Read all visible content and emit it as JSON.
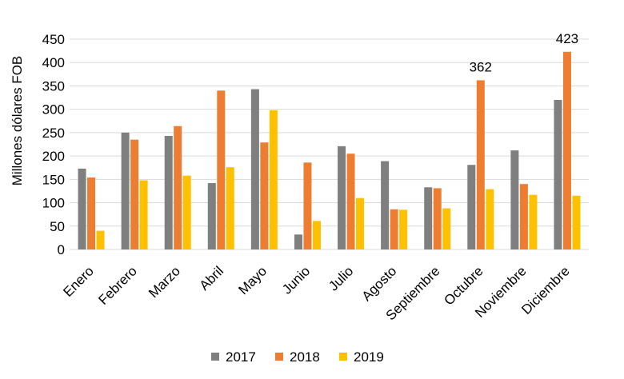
{
  "chart_data": {
    "type": "bar",
    "title": "",
    "ylabel": "Millones dólares FOB",
    "xlabel": "",
    "ylim": [
      0,
      450
    ],
    "yticks": [
      0,
      50,
      100,
      150,
      200,
      250,
      300,
      350,
      400,
      450
    ],
    "grid": true,
    "legend_position": "bottom",
    "categories": [
      "Enero",
      "Febrero",
      "Marzo",
      "Abril",
      "Mayo",
      "Junio",
      "Julio",
      "Agosto",
      "Septiembre",
      "Octubre",
      "Noviembre",
      "Diciembre"
    ],
    "series": [
      {
        "name": "2017",
        "color": "#7f7f7f",
        "values": [
          173,
          250,
          243,
          142,
          343,
          32,
          221,
          189,
          133,
          181,
          212,
          320
        ]
      },
      {
        "name": "2018",
        "color": "#ed7d31",
        "values": [
          154,
          235,
          264,
          340,
          229,
          186,
          205,
          86,
          131,
          362,
          140,
          423
        ]
      },
      {
        "name": "2019",
        "color": "#ffc000",
        "values": [
          40,
          148,
          158,
          176,
          298,
          61,
          110,
          85,
          88,
          129,
          117,
          115
        ]
      }
    ],
    "data_labels": [
      {
        "category": "Octubre",
        "series": "2018",
        "text": "362"
      },
      {
        "category": "Diciembre",
        "series": "2018",
        "text": "423"
      }
    ]
  }
}
